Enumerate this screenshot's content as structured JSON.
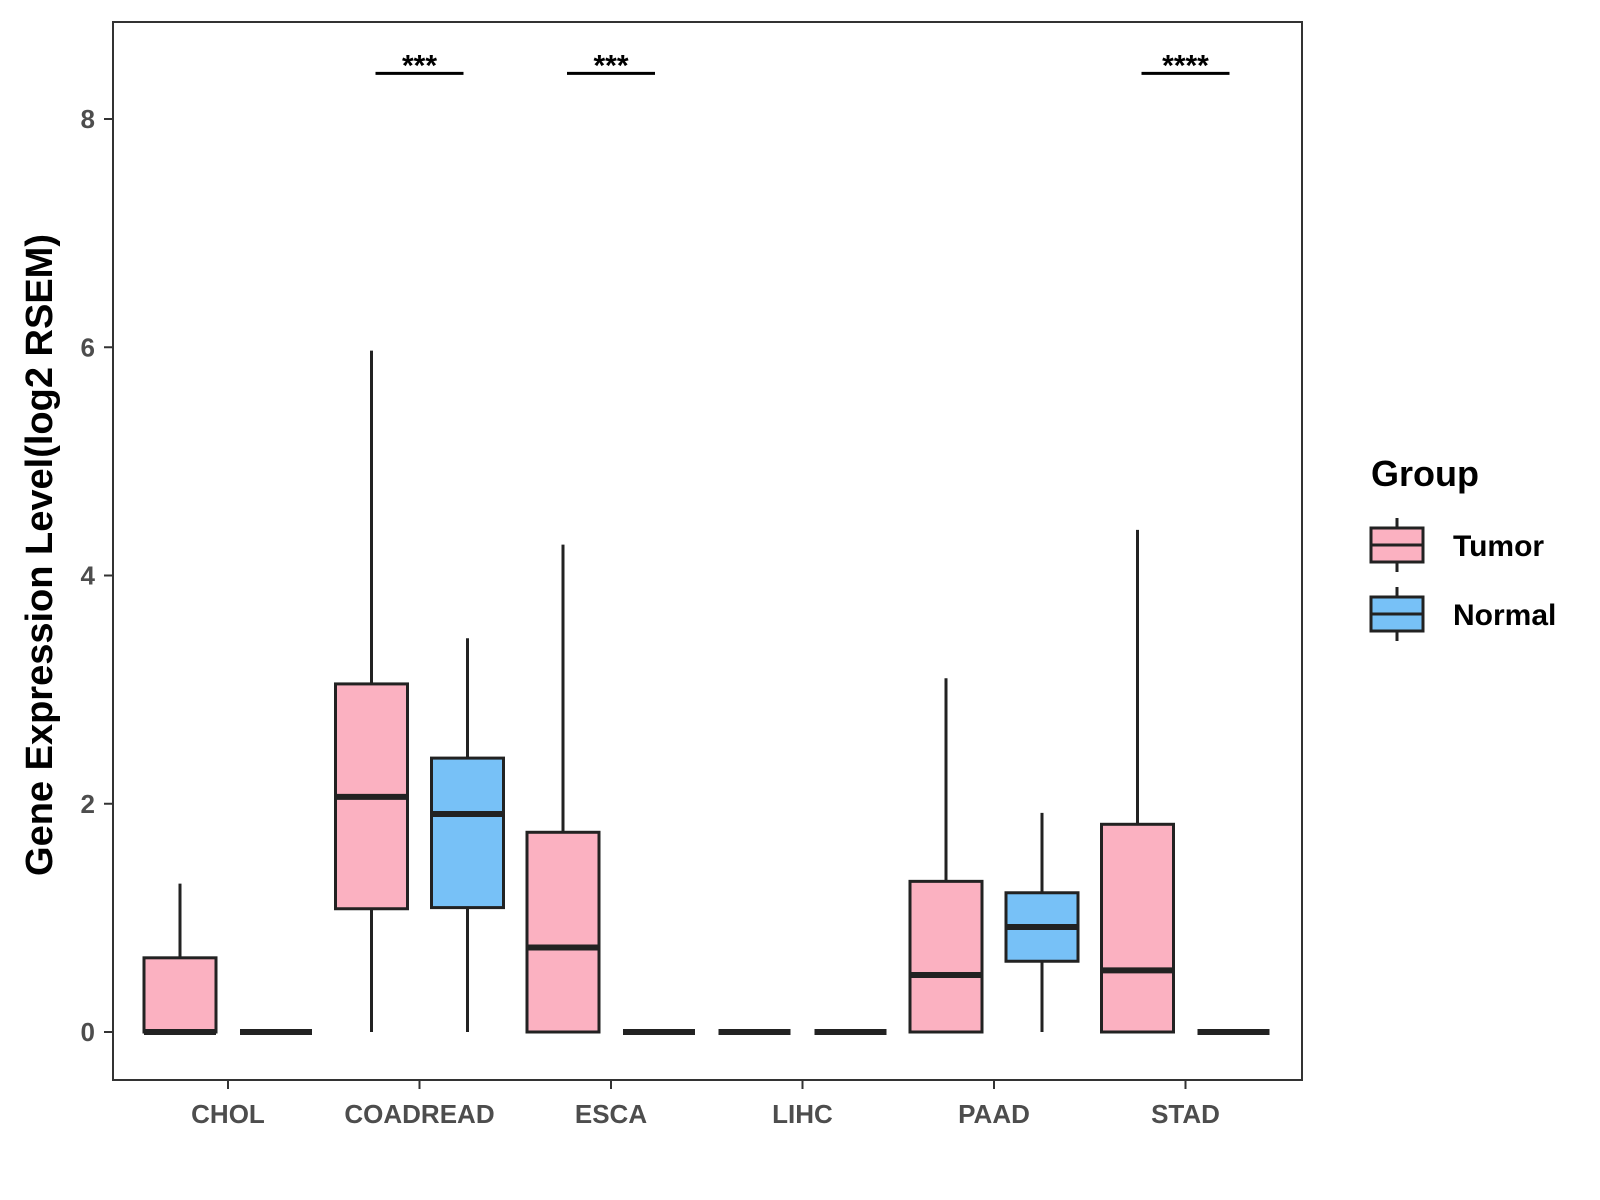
{
  "chart_data": {
    "type": "boxplot",
    "title": "",
    "xlabel": "",
    "ylabel": "Gene Expression Level(log2 RSEM)",
    "ylim": [
      -0.4,
      8.85
    ],
    "yticks": [
      "0",
      "2",
      "4",
      "6",
      "8"
    ],
    "categories": [
      "CHOL",
      "COADREAD",
      "ESCA",
      "LIHC",
      "PAAD",
      "STAD"
    ],
    "legend": {
      "title": "Group",
      "position": "right",
      "entries": [
        "Tumor",
        "Normal"
      ]
    },
    "colors": {
      "Tumor": "#fbb1c1",
      "Normal": "#77c1f7",
      "outline": "#222222"
    },
    "series": [
      {
        "name": "Tumor",
        "boxes": [
          {
            "category": "CHOL",
            "min": 0,
            "q1": 0,
            "median": 0,
            "q3": 0.65,
            "max": 1.3
          },
          {
            "category": "COADREAD",
            "min": 0,
            "q1": 1.08,
            "median": 2.06,
            "q3": 3.05,
            "max": 5.97
          },
          {
            "category": "ESCA",
            "min": 0,
            "q1": 0,
            "median": 0.74,
            "q3": 1.75,
            "max": 4.27
          },
          {
            "category": "LIHC",
            "min": 0,
            "q1": 0,
            "median": 0,
            "q3": 0,
            "max": 0
          },
          {
            "category": "PAAD",
            "min": 0,
            "q1": 0,
            "median": 0.5,
            "q3": 1.32,
            "max": 3.1
          },
          {
            "category": "STAD",
            "min": 0,
            "q1": 0,
            "median": 0.54,
            "q3": 1.82,
            "max": 4.4
          }
        ]
      },
      {
        "name": "Normal",
        "boxes": [
          {
            "category": "CHOL",
            "min": 0,
            "q1": 0,
            "median": 0,
            "q3": 0,
            "max": 0
          },
          {
            "category": "COADREAD",
            "min": 0,
            "q1": 1.09,
            "median": 1.91,
            "q3": 2.4,
            "max": 3.45
          },
          {
            "category": "ESCA",
            "min": 0,
            "q1": 0,
            "median": 0,
            "q3": 0,
            "max": 0
          },
          {
            "category": "LIHC",
            "min": 0,
            "q1": 0,
            "median": 0,
            "q3": 0,
            "max": 0
          },
          {
            "category": "PAAD",
            "min": 0,
            "q1": 0.62,
            "median": 0.92,
            "q3": 1.22,
            "max": 1.92
          },
          {
            "category": "STAD",
            "min": 0,
            "q1": 0,
            "median": 0,
            "q3": 0,
            "max": 0
          }
        ]
      }
    ],
    "significance": [
      {
        "category": "COADREAD",
        "label": "***",
        "y": 8.4
      },
      {
        "category": "ESCA",
        "label": "***",
        "y": 8.4
      },
      {
        "category": "STAD",
        "label": "****",
        "y": 8.4
      }
    ]
  }
}
